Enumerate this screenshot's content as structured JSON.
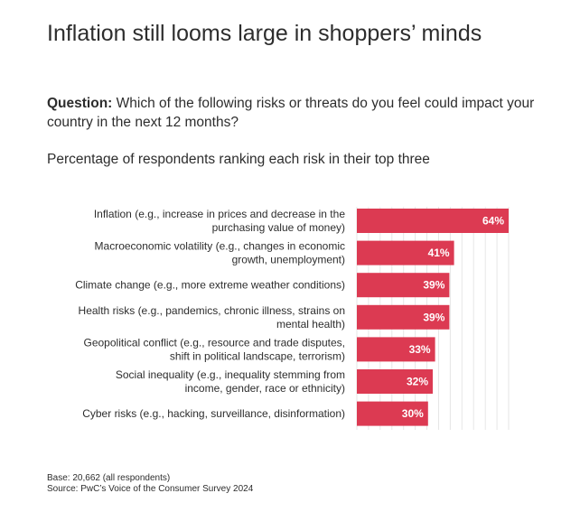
{
  "header": {
    "title": "Inflation still looms large in shoppers’ minds",
    "question_label": "Question:",
    "question_text": " Which of the following risks or threats do you feel could impact your country in the next 12 months?",
    "subtitle": "Percentage of respondents ranking each risk in their top three"
  },
  "chart_data": {
    "type": "bar",
    "orientation": "horizontal",
    "categories": [
      [
        "Inflation (e.g., increase in prices and decrease in the",
        "purchasing value of money)"
      ],
      [
        "Macroeconomic volatility (e.g., changes in economic",
        "growth, unemployment)"
      ],
      [
        "Climate change (e.g., more extreme weather conditions)"
      ],
      [
        "Health risks (e.g., pandemics, chronic illness, strains on",
        "mental health)"
      ],
      [
        "Geopolitical conflict (e.g., resource and trade disputes,",
        "shift in political landscape, terrorism)"
      ],
      [
        "Social inequality (e.g., inequality stemming from",
        "income, gender, race or ethnicity)"
      ],
      [
        "Cyber risks (e.g., hacking, surveillance, disinformation)"
      ]
    ],
    "values": [
      64,
      41,
      39,
      39,
      33,
      32,
      30
    ],
    "value_labels": [
      "64%",
      "41%",
      "39%",
      "39%",
      "33%",
      "32%",
      "30%"
    ],
    "xlim": [
      0,
      64
    ],
    "grid": "vertical",
    "bar_color": "#dc3a52",
    "grid_color": "#e6e6e6"
  },
  "footer": {
    "base": "Base: 20,662 (all respondents)",
    "source": "Source: PwC’s Voice of the Consumer Survey 2024"
  }
}
